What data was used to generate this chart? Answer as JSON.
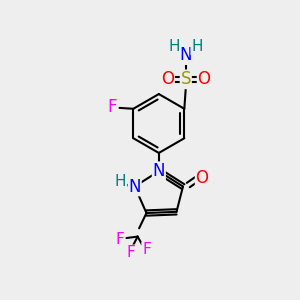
{
  "bg_color": "#eeeeee",
  "atom_colors": {
    "C": "#000000",
    "N": "#0000ff",
    "O": "#ff0000",
    "F": "#ff00ff",
    "S": "#999900",
    "H": "#008080"
  },
  "bond_color": "#000000"
}
